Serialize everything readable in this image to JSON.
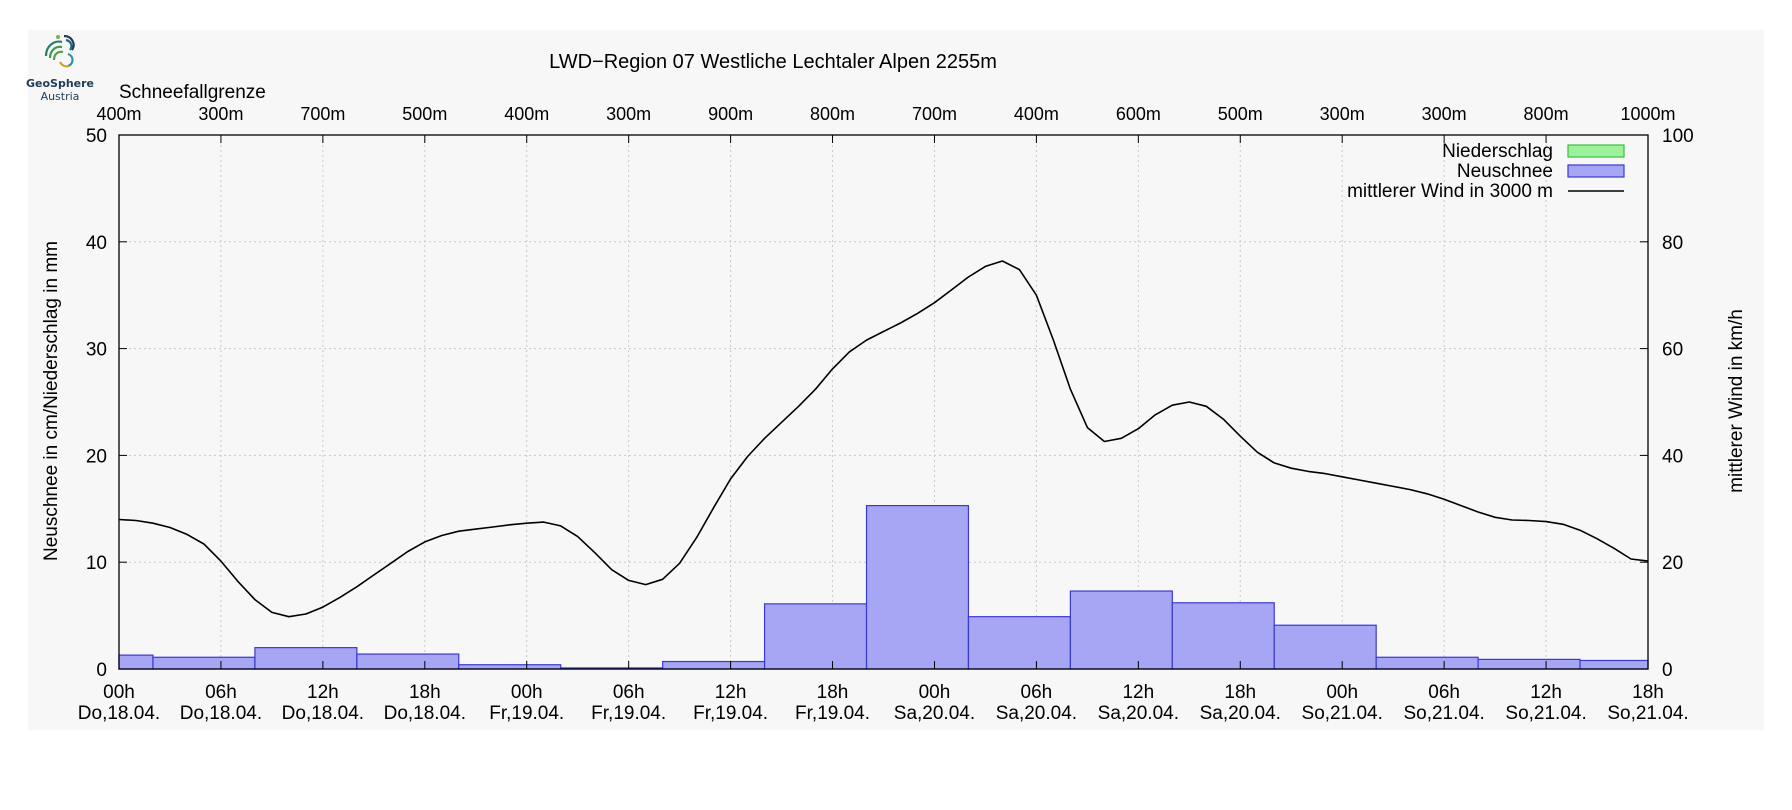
{
  "logo": {
    "name": "GeoSphere",
    "subtitle": "Austria"
  },
  "chart_data": {
    "type": "bar",
    "title": "LWD−Region 07 Westliche Lechtaler Alpen 2255m",
    "ylabel": "Neuschnee in cm/Niederschlag in mm",
    "y2label": "mittlerer Wind in km/h",
    "ylim": [
      0,
      50
    ],
    "y2lim": [
      0,
      100
    ],
    "yticks": [
      "0",
      "10",
      "20",
      "30",
      "40",
      "50"
    ],
    "y2ticks": [
      "0",
      "20",
      "40",
      "60",
      "80",
      "100"
    ],
    "xlim": [
      0,
      90
    ],
    "x_tick_hours": [
      "00h",
      "06h",
      "12h",
      "18h",
      "00h",
      "06h",
      "12h",
      "18h",
      "00h",
      "06h",
      "12h",
      "18h",
      "00h",
      "06h",
      "12h",
      "18h"
    ],
    "x_tick_days": [
      "Do,18.04.",
      "Do,18.04.",
      "Do,18.04.",
      "Do,18.04.",
      "Fr,19.04.",
      "Fr,19.04.",
      "Fr,19.04.",
      "Fr,19.04.",
      "Sa,20.04.",
      "Sa,20.04.",
      "Sa,20.04.",
      "Sa,20.04.",
      "So,21.04.",
      "So,21.04.",
      "So,21.04.",
      "So,21.04."
    ],
    "snowline": {
      "label": "Schneefallgrenze",
      "values": [
        "400m",
        "300m",
        "700m",
        "500m",
        "400m",
        "300m",
        "900m",
        "800m",
        "700m",
        "400m",
        "600m",
        "500m",
        "300m",
        "300m",
        "800m",
        "1000m"
      ]
    },
    "legend": {
      "position": "top-right",
      "entries": [
        {
          "label": "Niederschlag",
          "color": "#9cf29c",
          "border": "#3cbf3c"
        },
        {
          "label": "Neuschnee",
          "color": "#a6a6f5",
          "border": "#3a3ad0"
        },
        {
          "label": "mittlerer Wind in 3000 m",
          "color": "#000000"
        }
      ]
    },
    "series": [
      {
        "name": "Neuschnee",
        "kind": "bar",
        "color": "#a6a6f5",
        "bars": [
          {
            "x0": 0,
            "x1": 2,
            "value": 1.3
          },
          {
            "x0": 2,
            "x1": 8,
            "value": 1.1
          },
          {
            "x0": 8,
            "x1": 14,
            "value": 2.0
          },
          {
            "x0": 14,
            "x1": 20,
            "value": 1.4
          },
          {
            "x0": 20,
            "x1": 26,
            "value": 0.4
          },
          {
            "x0": 26,
            "x1": 32,
            "value": 0.1
          },
          {
            "x0": 32,
            "x1": 38,
            "value": 0.7
          },
          {
            "x0": 38,
            "x1": 44,
            "value": 6.1
          },
          {
            "x0": 44,
            "x1": 50,
            "value": 15.3
          },
          {
            "x0": 50,
            "x1": 56,
            "value": 4.9
          },
          {
            "x0": 56,
            "x1": 62,
            "value": 7.3
          },
          {
            "x0": 62,
            "x1": 68,
            "value": 6.2
          },
          {
            "x0": 68,
            "x1": 74,
            "value": 4.1
          },
          {
            "x0": 74,
            "x1": 80,
            "value": 1.1
          },
          {
            "x0": 80,
            "x1": 86,
            "value": 0.9
          },
          {
            "x0": 86,
            "x1": 90,
            "value": 0.8
          }
        ]
      },
      {
        "name": "mittlerer Wind in 3000 m",
        "kind": "line",
        "axis": "right",
        "color": "#000000",
        "x": [
          0,
          1,
          2,
          3,
          4,
          5,
          6,
          7,
          8,
          9,
          10,
          11,
          12,
          13,
          14,
          15,
          16,
          17,
          18,
          19,
          20,
          21,
          22,
          23,
          24,
          25,
          26,
          27,
          28,
          29,
          30,
          31,
          32,
          33,
          34,
          35,
          36,
          37,
          38,
          39,
          40,
          41,
          42,
          43,
          44,
          45,
          46,
          47,
          48,
          49,
          50,
          51,
          52,
          53,
          54,
          55,
          56,
          57,
          58,
          59,
          60,
          61,
          62,
          63,
          64,
          65,
          66,
          67,
          68,
          69,
          70,
          71,
          72,
          73,
          74,
          75,
          76,
          77,
          78,
          79,
          80,
          81,
          82,
          83,
          84,
          85,
          86,
          87,
          88,
          89,
          90
        ],
        "y": [
          28,
          27.8,
          27.3,
          26.5,
          25.2,
          23.4,
          20.2,
          16.4,
          13.0,
          10.6,
          9.8,
          10.3,
          11.6,
          13.4,
          15.4,
          17.6,
          19.8,
          22.0,
          23.8,
          25.0,
          25.8,
          26.2,
          26.6,
          27.0,
          27.3,
          27.5,
          26.8,
          24.8,
          21.8,
          18.6,
          16.6,
          15.8,
          16.8,
          19.8,
          24.6,
          30.2,
          35.6,
          39.8,
          43.2,
          46.2,
          49.2,
          52.4,
          56.2,
          59.4,
          61.6,
          63.2,
          64.8,
          66.6,
          68.6,
          71.0,
          73.4,
          75.4,
          76.4,
          74.8,
          70.0,
          61.6,
          52.4,
          45.2,
          42.6,
          43.2,
          45.0,
          47.6,
          49.4,
          50.0,
          49.2,
          46.8,
          43.6,
          40.6,
          38.6,
          37.6,
          37.0,
          36.6,
          36.0,
          35.4,
          34.8,
          34.2,
          33.6,
          32.8,
          31.8,
          30.6,
          29.4,
          28.4,
          27.9,
          27.8,
          27.6,
          27.1,
          26.0,
          24.4,
          22.6,
          20.6,
          20.2
        ]
      }
    ]
  }
}
